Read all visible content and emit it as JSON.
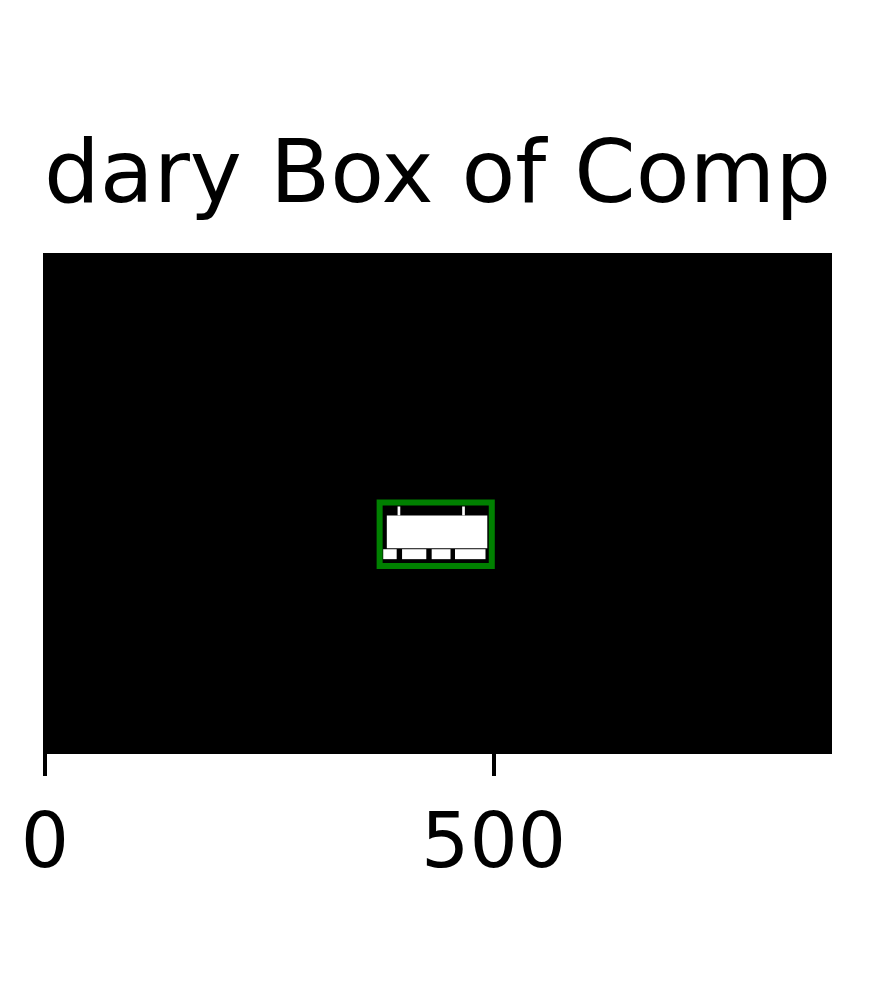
{
  "chart_data": {
    "type": "image",
    "title": "dary Box of Comp",
    "color": "#000000",
    "xlim": [
      0,
      875
    ],
    "ylim": [
      500,
      0
    ],
    "xticks": [
      0,
      500
    ],
    "tick_labels": "x",
    "grid": false,
    "component": {
      "color": "#ffffff",
      "rects": [
        [
          381,
          493,
          262,
          295
        ],
        [
          393,
          396,
          253,
          262
        ],
        [
          465,
          468,
          253,
          262
        ],
        [
          377,
          392,
          296,
          306
        ],
        [
          398,
          425,
          296,
          306
        ],
        [
          431,
          452,
          296,
          306
        ],
        [
          457,
          491,
          296,
          306
        ]
      ]
    },
    "box": {
      "x0": 373,
      "x1": 498,
      "y0": 249,
      "y1": 313,
      "color": "#008000"
    }
  }
}
